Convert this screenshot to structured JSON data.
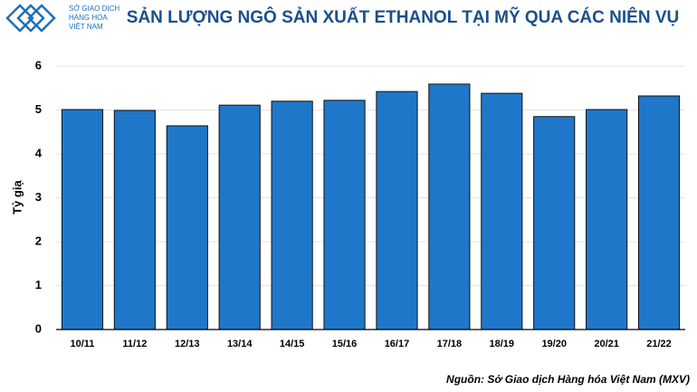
{
  "logo": {
    "lines": [
      "SỞ GIAO DỊCH",
      "HÀNG HÓA",
      "VIỆT NAM"
    ]
  },
  "chart_data": {
    "type": "bar",
    "title": "SẢN LƯỢNG NGÔ SẢN XUẤT ETHANOL TẠI MỸ QUA CÁC NIÊN VỤ",
    "y_label": "Tỷ giạ",
    "source": "Nguồn: Sở Giao dịch Hàng hóa Việt Nam (MXV)",
    "categories": [
      "10/11",
      "11/12",
      "12/13",
      "13/14",
      "14/15",
      "15/16",
      "16/17",
      "17/18",
      "18/19",
      "19/20",
      "20/21",
      "21/22"
    ],
    "values": [
      5.01,
      4.99,
      4.64,
      5.11,
      5.2,
      5.22,
      5.42,
      5.59,
      5.38,
      4.85,
      5.01,
      5.32
    ],
    "color": "#1f77c9",
    "ylim": [
      0,
      6
    ],
    "yticks": [
      0,
      1,
      2,
      3,
      4,
      5,
      6
    ],
    "grid": true
  }
}
